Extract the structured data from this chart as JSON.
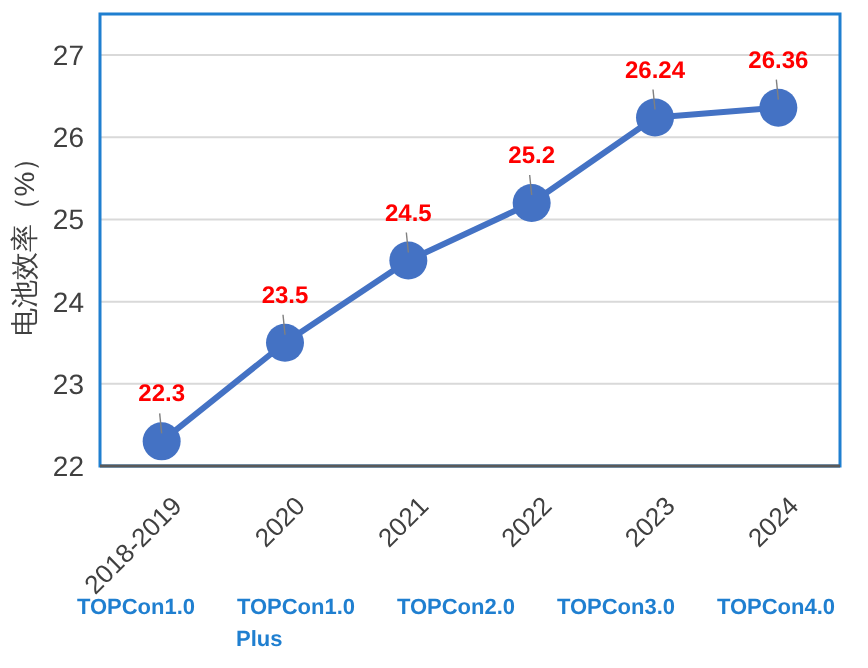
{
  "chart_data": {
    "type": "line",
    "ylabel": "电池效率（%）",
    "categories": [
      "2018-2019",
      "2020",
      "2021",
      "2022",
      "2023",
      "2024"
    ],
    "series": [
      {
        "color": "#4472c4",
        "values": [
          22.3,
          23.5,
          24.5,
          25.2,
          26.24,
          26.36
        ]
      }
    ],
    "ylim": [
      22,
      27.5
    ],
    "yticks": [
      22,
      23,
      24,
      25,
      26,
      27
    ],
    "grid": "y",
    "marker": "circle",
    "line_style": "solid",
    "data_labels": true,
    "annotations": [
      "TOPCon1.0",
      "TOPCon1.0 Plus",
      "TOPCon2.0",
      "TOPCon3.0",
      "TOPCon4.0"
    ]
  }
}
